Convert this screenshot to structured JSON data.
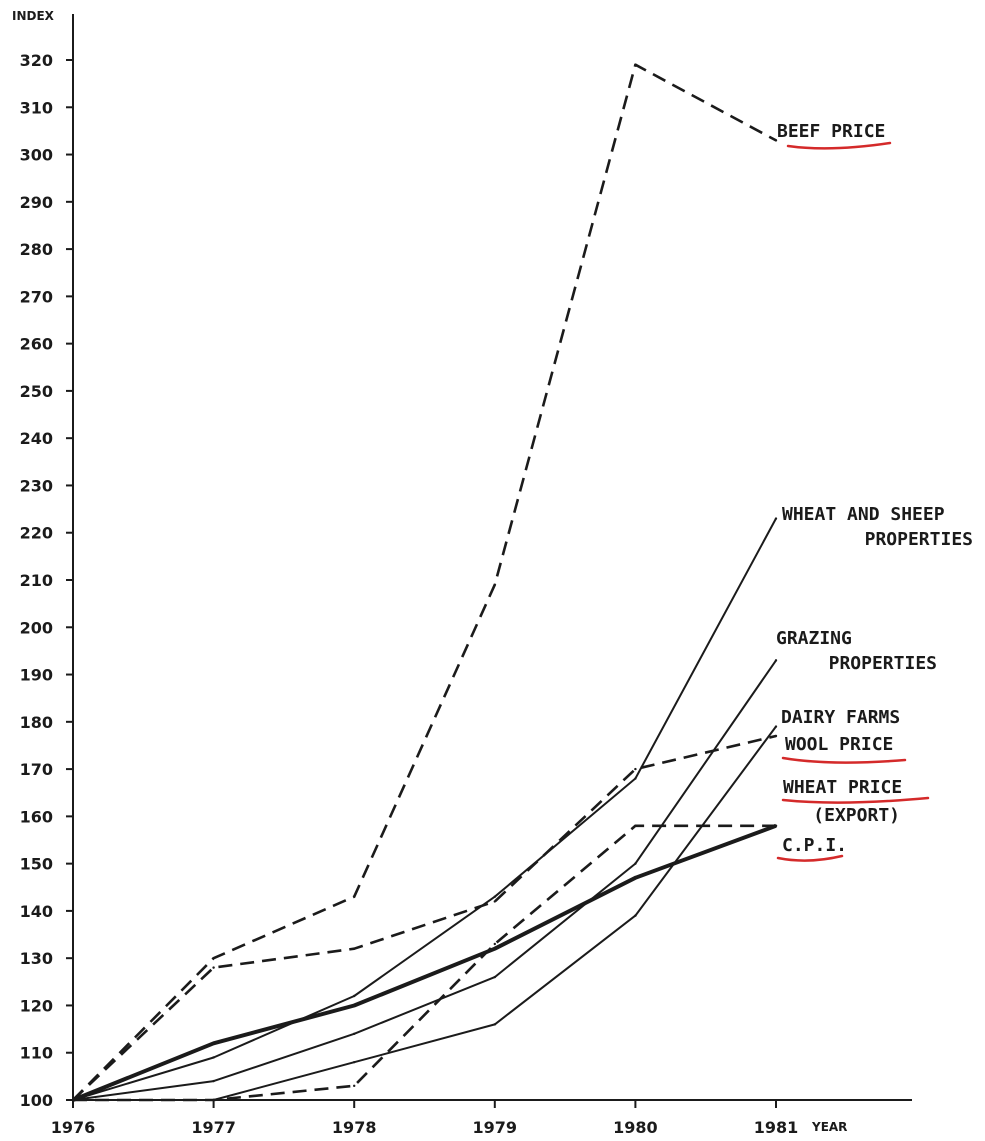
{
  "chart_data": {
    "type": "line",
    "xlabel": "YEAR",
    "ylabel": "INDEX",
    "x": [
      1976,
      1977,
      1978,
      1979,
      1980,
      1981
    ],
    "x_tick_labels": [
      "1976",
      "1977",
      "1978",
      "1979",
      "1980",
      "1981"
    ],
    "ylim": [
      100,
      320
    ],
    "y_ticks": [
      100,
      110,
      120,
      130,
      140,
      150,
      160,
      170,
      180,
      190,
      200,
      210,
      220,
      230,
      240,
      250,
      260,
      270,
      280,
      290,
      300,
      310,
      320
    ],
    "grid": false,
    "legend": "none",
    "series": [
      {
        "name": "BEEF PRICE",
        "label_lines": [
          "BEEF PRICE"
        ],
        "style": "dashed",
        "values": [
          100,
          130,
          143,
          209,
          319,
          303
        ]
      },
      {
        "name": "WHEAT AND SHEEP PROPERTIES",
        "label_lines": [
          "WHEAT AND SHEEP",
          "PROPERTIES"
        ],
        "style": "solid",
        "values": [
          100,
          109,
          122,
          143,
          168,
          223
        ]
      },
      {
        "name": "GRAZING PROPERTIES",
        "label_lines": [
          "GRAZING",
          "PROPERTIES"
        ],
        "style": "solid",
        "values": [
          100,
          104,
          114,
          126,
          150,
          193
        ]
      },
      {
        "name": "DAIRY FARMS",
        "label_lines": [
          "DAIRY FARMS"
        ],
        "style": "solid",
        "values": [
          100,
          100,
          108,
          116,
          139,
          179
        ]
      },
      {
        "name": "WOOL PRICE",
        "label_lines": [
          "WOOL PRICE"
        ],
        "style": "dashed",
        "values": [
          100,
          128,
          132,
          142,
          170,
          177
        ]
      },
      {
        "name": "WHEAT PRICE (EXPORT)",
        "label_lines": [
          "WHEAT PRICE",
          "(EXPORT)"
        ],
        "style": "dashed",
        "values": [
          100,
          100,
          103,
          133,
          158,
          158
        ]
      },
      {
        "name": "C.P.I.",
        "label_lines": [
          "C.P.I."
        ],
        "style": "solid-thick",
        "values": [
          100,
          112,
          120,
          132,
          147,
          158
        ]
      }
    ],
    "underlined_labels": [
      "BEEF PRICE",
      "WOOL PRICE",
      "WHEAT PRICE",
      "C.P.I."
    ],
    "colors": {
      "ink": "#1b1b1b",
      "underline": "#d42a2a",
      "background": "#ffffff"
    }
  }
}
